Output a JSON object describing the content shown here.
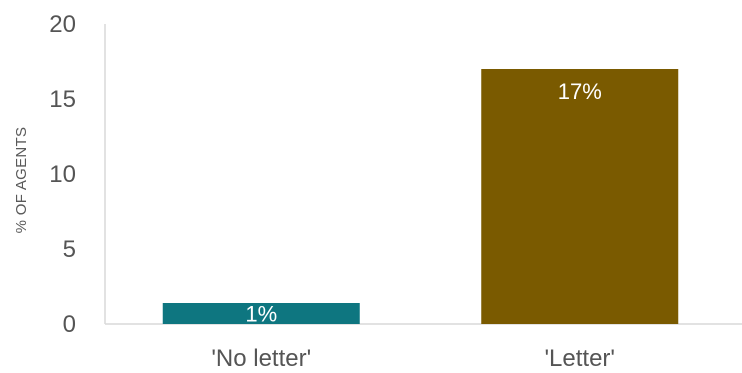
{
  "chart_data": {
    "type": "bar",
    "categories": [
      "'No letter'",
      "'Letter'"
    ],
    "values": [
      1.4,
      17
    ],
    "data_labels": [
      "1%",
      "17%"
    ],
    "colors": [
      "#0e7680",
      "#7a5a00"
    ],
    "title": "",
    "xlabel": "",
    "ylabel": "% OF AGENTS",
    "ylim": [
      0,
      20
    ],
    "yticks": [
      0,
      5,
      10,
      15,
      20
    ],
    "grid": false,
    "legend": "none"
  }
}
